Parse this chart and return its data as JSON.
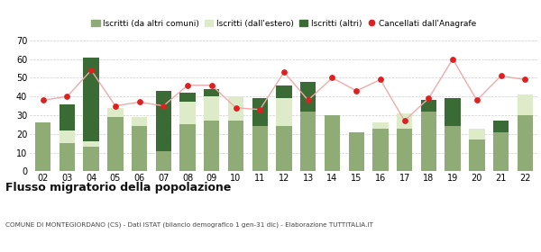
{
  "years": [
    "02",
    "03",
    "04",
    "05",
    "06",
    "07",
    "08",
    "09",
    "10",
    "11",
    "12",
    "13",
    "14",
    "15",
    "16",
    "17",
    "18",
    "19",
    "20",
    "21",
    "22"
  ],
  "iscritti_altri_comuni": [
    26,
    15,
    13,
    29,
    24,
    11,
    25,
    27,
    27,
    24,
    24,
    32,
    30,
    21,
    23,
    23,
    32,
    24,
    17,
    21,
    30
  ],
  "iscritti_estero": [
    0,
    7,
    3,
    5,
    5,
    0,
    12,
    13,
    13,
    0,
    15,
    0,
    0,
    0,
    3,
    8,
    0,
    0,
    6,
    0,
    11
  ],
  "iscritti_altri": [
    0,
    14,
    45,
    0,
    0,
    32,
    5,
    4,
    0,
    15,
    7,
    16,
    0,
    0,
    0,
    0,
    6,
    15,
    0,
    6,
    0
  ],
  "cancellati": [
    38,
    40,
    54,
    35,
    37,
    35,
    46,
    46,
    34,
    33,
    53,
    38,
    50,
    43,
    49,
    27,
    39,
    60,
    38,
    51,
    49
  ],
  "color_altri_comuni": "#8fac76",
  "color_estero": "#ddebc8",
  "color_altri": "#3a6b35",
  "color_cancellati": "#dd2020",
  "color_line": "#f0aaaa",
  "ylim": [
    0,
    70
  ],
  "yticks": [
    0,
    10,
    20,
    30,
    40,
    50,
    60,
    70
  ],
  "title": "Flusso migratorio della popolazione",
  "subtitle": "COMUNE DI MONTEGIORDANO (CS) - Dati ISTAT (bilancio demografico 1 gen-31 dic) - Elaborazione TUTTITALIA.IT",
  "legend_labels": [
    "Iscritti (da altri comuni)",
    "Iscritti (dall'estero)",
    "Iscritti (altri)",
    "Cancellati dall'Anagrafe"
  ],
  "background_color": "#ffffff",
  "grid_color": "#cccccc"
}
